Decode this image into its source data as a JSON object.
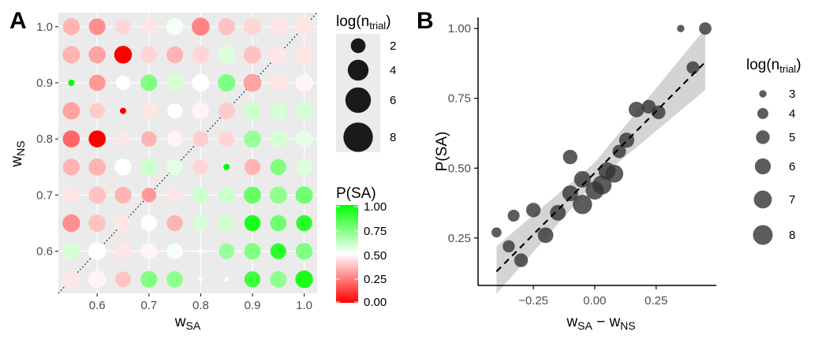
{
  "panel_a": {
    "letter": "A",
    "chart_data": {
      "type": "scatter",
      "xlabel_main": "w",
      "xlabel_sub": "SA",
      "ylabel_main": "w",
      "ylabel_sub": "NS",
      "xlim": [
        0.525,
        1.025
      ],
      "ylim": [
        0.525,
        1.025
      ],
      "x_ticks": [
        0.6,
        0.7,
        0.8,
        0.9,
        1.0
      ],
      "x_tick_labels": [
        "0.6",
        "0.7",
        "0.8",
        "0.9",
        "1.0"
      ],
      "y_ticks": [
        0.6,
        0.7,
        0.8,
        0.9,
        1.0
      ],
      "y_tick_labels": [
        "0.6",
        "0.7",
        "0.8",
        "0.9",
        "1.0"
      ],
      "grid": true,
      "diagonal": "dotted identity line",
      "x_values": [
        0.55,
        0.6,
        0.65,
        0.7,
        0.75,
        0.8,
        0.85,
        0.9,
        0.95,
        1.0
      ],
      "y_values": [
        1.0,
        0.95,
        0.9,
        0.85,
        0.8,
        0.75,
        0.7,
        0.65,
        0.6,
        0.55
      ],
      "log_ntrial": [
        [
          7.1,
          7.0,
          6.2,
          5.6,
          7.5,
          8.1,
          7.3,
          7.5,
          8.5,
          8.5
        ],
        [
          7.6,
          7.3,
          7.9,
          7.2,
          7.0,
          7.6,
          7.7,
          7.8,
          7.9,
          8.2
        ],
        [
          1.0,
          6.8,
          5.2,
          7.0,
          6.7,
          7.7,
          7.7,
          8.0,
          8.3,
          8.2
        ],
        [
          7.5,
          6.2,
          1.0,
          6.3,
          5.6,
          7.1,
          7.2,
          7.7,
          7.6,
          7.7
        ],
        [
          7.3,
          7.3,
          6.0,
          6.0,
          5.7,
          6.0,
          6.2,
          7.4,
          7.5,
          7.7
        ],
        [
          6.9,
          7.4,
          7.1,
          7.4,
          6.5,
          6.0,
          1.0,
          6.5,
          6.5,
          6.7
        ],
        [
          6.9,
          7.4,
          7.0,
          5.4,
          6.3,
          6.5,
          7.0,
          7.3,
          7.4,
          7.6
        ],
        [
          7.8,
          7.4,
          6.5,
          6.5,
          6.4,
          5.8,
          5.8,
          6.5,
          6.7,
          6.5
        ],
        [
          7.1,
          7.9,
          6.5,
          6.7,
          6.5,
          0.5,
          6.1,
          6.8,
          6.3,
          7.1
        ],
        [
          7.6,
          7.7,
          6.2,
          6.9,
          6.8,
          0.5,
          0.5,
          6.5,
          7.0,
          7.8
        ]
      ],
      "p_sa": [
        [
          0.35,
          0.28,
          0.42,
          0.45,
          0.52,
          0.26,
          0.38,
          0.42,
          0.45,
          0.45
        ],
        [
          0.35,
          0.32,
          0.0,
          0.42,
          0.35,
          0.42,
          0.57,
          0.38,
          0.45,
          0.45
        ],
        [
          1.0,
          0.3,
          0.5,
          0.75,
          0.58,
          0.5,
          0.75,
          0.32,
          0.45,
          0.48
        ],
        [
          0.32,
          0.4,
          0.0,
          0.45,
          0.5,
          0.48,
          0.4,
          0.6,
          0.58,
          0.58
        ],
        [
          0.2,
          0.0,
          0.45,
          0.35,
          0.48,
          0.4,
          0.42,
          0.7,
          0.58,
          0.55
        ],
        [
          0.35,
          0.35,
          0.5,
          0.6,
          0.55,
          0.42,
          1.0,
          0.35,
          0.75,
          0.57
        ],
        [
          0.45,
          0.38,
          0.35,
          0.3,
          0.45,
          0.6,
          0.6,
          0.8,
          0.72,
          0.78
        ],
        [
          0.28,
          0.38,
          0.45,
          0.5,
          0.35,
          0.58,
          0.6,
          0.95,
          0.78,
          0.92
        ],
        [
          0.58,
          0.5,
          0.45,
          0.48,
          0.52,
          0.5,
          0.7,
          0.75,
          0.92,
          0.75
        ],
        [
          0.45,
          0.48,
          0.38,
          0.75,
          0.72,
          0.5,
          0.5,
          0.88,
          0.72,
          0.95
        ]
      ]
    },
    "legend_size": {
      "title_main": "log(n",
      "title_sub": "trial",
      "title_close": ")",
      "labels": [
        "2",
        "4",
        "6",
        "8"
      ],
      "values": [
        2,
        4,
        6,
        8
      ]
    },
    "legend_color": {
      "title": "P(SA)",
      "labels": [
        "1.00",
        "0.75",
        "0.50",
        "0.25",
        "0.00"
      ],
      "colors": {
        "low": "#ff0000",
        "mid": "#ffffff",
        "high": "#00ff00"
      }
    }
  },
  "panel_b": {
    "letter": "B",
    "chart_data": {
      "type": "scatter",
      "ylabel": "P(SA)",
      "xlabel_parts": [
        "w",
        "SA",
        " − w",
        "NS"
      ],
      "xlim": [
        -0.475,
        0.495
      ],
      "ylim": [
        0.08,
        1.04
      ],
      "x_ticks": [
        -0.25,
        0.0,
        0.25
      ],
      "x_tick_labels": [
        "−0.25",
        "0.00",
        "0.25"
      ],
      "y_ticks": [
        0.25,
        0.5,
        0.75,
        1.0
      ],
      "y_tick_labels": [
        "0.25",
        "0.50",
        "0.75",
        "1.00"
      ],
      "fit": {
        "type": "linear",
        "x_range": [
          -0.4,
          0.45
        ],
        "y_range": [
          0.13,
          0.88
        ]
      },
      "ribbon": [
        {
          "x": -0.4,
          "lo": 0.05,
          "hi": 0.22
        },
        {
          "x": 0.0,
          "lo": 0.45,
          "hi": 0.52
        },
        {
          "x": 0.45,
          "lo": 0.78,
          "hi": 1.0
        }
      ],
      "points": [
        {
          "x": -0.4,
          "y": 0.27,
          "s": 3.7
        },
        {
          "x": -0.35,
          "y": 0.22,
          "s": 4.4
        },
        {
          "x": -0.33,
          "y": 0.33,
          "s": 4.3
        },
        {
          "x": -0.3,
          "y": 0.17,
          "s": 5.0
        },
        {
          "x": -0.25,
          "y": 0.35,
          "s": 5.3
        },
        {
          "x": -0.2,
          "y": 0.26,
          "s": 5.8
        },
        {
          "x": -0.15,
          "y": 0.34,
          "s": 5.9
        },
        {
          "x": -0.1,
          "y": 0.54,
          "s": 5.3
        },
        {
          "x": -0.1,
          "y": 0.41,
          "s": 5.9
        },
        {
          "x": -0.05,
          "y": 0.46,
          "s": 6.3
        },
        {
          "x": -0.05,
          "y": 0.37,
          "s": 7.7
        },
        {
          "x": 0.0,
          "y": 0.42,
          "s": 7.1
        },
        {
          "x": 0.03,
          "y": 0.44,
          "s": 7.6
        },
        {
          "x": 0.05,
          "y": 0.49,
          "s": 6.6
        },
        {
          "x": 0.08,
          "y": 0.48,
          "s": 6.9
        },
        {
          "x": 0.1,
          "y": 0.56,
          "s": 4.9
        },
        {
          "x": 0.13,
          "y": 0.6,
          "s": 5.6
        },
        {
          "x": 0.17,
          "y": 0.71,
          "s": 5.8
        },
        {
          "x": 0.22,
          "y": 0.72,
          "s": 5.0
        },
        {
          "x": 0.26,
          "y": 0.7,
          "s": 5.0
        },
        {
          "x": 0.35,
          "y": 1.0,
          "s": 3.0
        },
        {
          "x": 0.4,
          "y": 0.86,
          "s": 4.6
        },
        {
          "x": 0.45,
          "y": 1.0,
          "s": 4.5
        }
      ]
    },
    "legend_size": {
      "title_main": "log(n",
      "title_sub": "trial",
      "title_close": ")",
      "labels": [
        "3",
        "4",
        "5",
        "6",
        "7",
        "8"
      ],
      "values": [
        3,
        4,
        5,
        6,
        7,
        8
      ]
    }
  }
}
